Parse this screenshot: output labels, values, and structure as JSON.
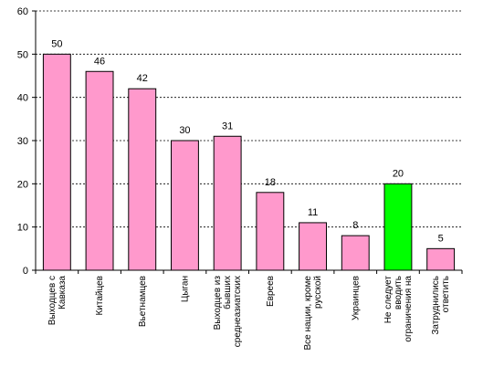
{
  "chart_data": {
    "type": "bar",
    "categories": [
      [
        "Выходцев с",
        "Кавказа"
      ],
      [
        "Китайцев"
      ],
      [
        "Вьетнамцев"
      ],
      [
        "Цыган"
      ],
      [
        "Выходцев из",
        "бывших",
        "среднеазиатских"
      ],
      [
        "Евреев"
      ],
      [
        "Все нации, кроме",
        "русской"
      ],
      [
        "Украинцев"
      ],
      [
        "Не следует",
        "вводить",
        "ограничения на"
      ],
      [
        "Затруднились",
        "ответить"
      ]
    ],
    "values": [
      50,
      46,
      42,
      30,
      31,
      18,
      11,
      8,
      20,
      5
    ],
    "bar_colors": [
      "#ff99cc",
      "#ff99cc",
      "#ff99cc",
      "#ff99cc",
      "#ff99cc",
      "#ff99cc",
      "#ff99cc",
      "#ff99cc",
      "#00ff00",
      "#ff99cc"
    ],
    "ylim": [
      0,
      60
    ],
    "yticks": [
      0,
      10,
      20,
      30,
      40,
      50,
      60
    ],
    "grid": true,
    "title": "",
    "xlabel": "",
    "ylabel": ""
  }
}
